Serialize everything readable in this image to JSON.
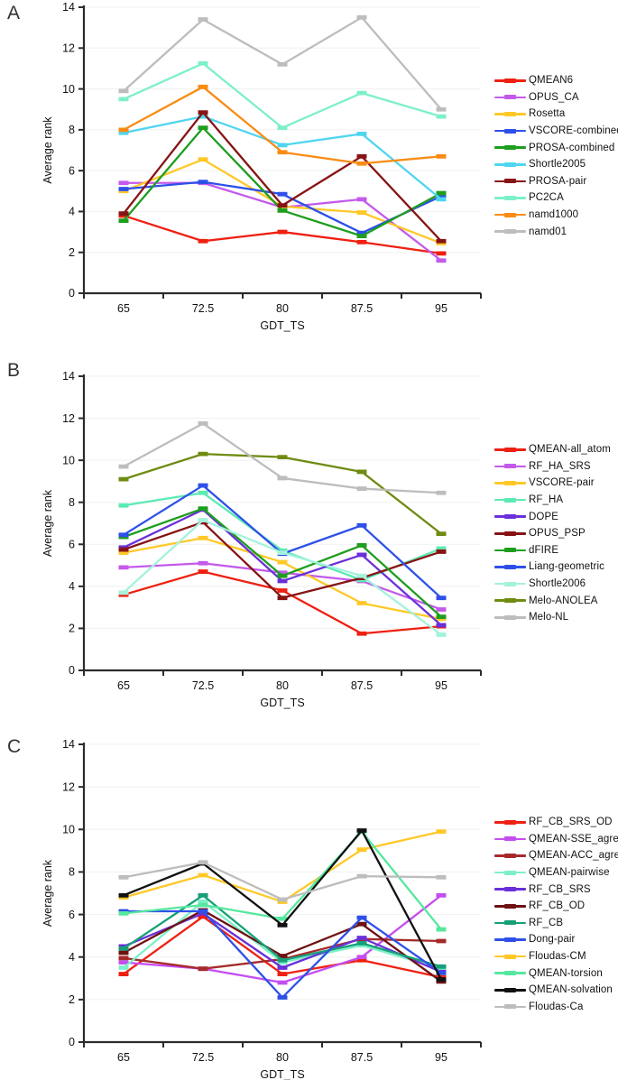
{
  "figure_title": "",
  "axis": {
    "xlabel": "GDT_TS",
    "ylabel": "Average rank"
  },
  "chart_data": [
    {
      "type": "line",
      "panel": "A",
      "xlabel": "GDT_TS",
      "ylabel": "Average rank",
      "categories": [
        "65",
        "72.5",
        "80",
        "87.5",
        "95"
      ],
      "ylim": [
        0,
        14
      ],
      "y_ticks": [
        0,
        2,
        4,
        6,
        8,
        10,
        12,
        14
      ],
      "grid": true,
      "legend_position": "right",
      "series": [
        {
          "name": "QMEAN6",
          "color": "#EE2011",
          "values": [
            3.8,
            2.55,
            3.0,
            2.5,
            1.95
          ]
        },
        {
          "name": "OPUS_CA",
          "color": "#C45AEC",
          "values": [
            5.4,
            5.4,
            4.2,
            4.6,
            1.6
          ]
        },
        {
          "name": "Rosetta",
          "color": "#FFC828",
          "values": [
            5.0,
            6.55,
            4.25,
            3.95,
            2.45
          ]
        },
        {
          "name": "VSCORE-combined",
          "color": "#2E50E8",
          "values": [
            5.1,
            5.45,
            4.85,
            2.95,
            4.75
          ]
        },
        {
          "name": "PROSA-combined",
          "color": "#1E9E1E",
          "values": [
            3.55,
            8.1,
            4.05,
            2.8,
            4.9
          ]
        },
        {
          "name": "Shortle2005",
          "color": "#4FD5F0",
          "values": [
            7.85,
            8.65,
            7.25,
            7.8,
            4.6
          ]
        },
        {
          "name": "PROSA-pair",
          "color": "#871414",
          "values": [
            3.9,
            8.85,
            4.3,
            6.7,
            2.55
          ]
        },
        {
          "name": "PC2CA",
          "color": "#7DF0C8",
          "values": [
            9.5,
            11.25,
            8.1,
            9.8,
            8.65
          ]
        },
        {
          "name": "namd1000",
          "color": "#F98C14",
          "values": [
            8.0,
            10.1,
            6.9,
            6.35,
            6.7
          ]
        },
        {
          "name": "namd01",
          "color": "#BDBDBD",
          "values": [
            9.9,
            13.4,
            11.2,
            13.5,
            9.0
          ]
        }
      ]
    },
    {
      "type": "line",
      "panel": "B",
      "xlabel": "GDT_TS",
      "ylabel": "Average rank",
      "categories": [
        "65",
        "72.5",
        "80",
        "87.5",
        "95"
      ],
      "ylim": [
        0,
        14
      ],
      "y_ticks": [
        0,
        2,
        4,
        6,
        8,
        10,
        12,
        14
      ],
      "grid": true,
      "legend_position": "right",
      "series": [
        {
          "name": "QMEAN-all_atom",
          "color": "#EE2011",
          "values": [
            3.6,
            4.7,
            3.8,
            1.75,
            2.1
          ]
        },
        {
          "name": "RF_HA_SRS",
          "color": "#C45AEC",
          "values": [
            4.9,
            5.1,
            4.65,
            4.25,
            2.9
          ]
        },
        {
          "name": "VSCORE-pair",
          "color": "#FFC828",
          "values": [
            5.6,
            6.3,
            5.15,
            3.2,
            2.45
          ]
        },
        {
          "name": "RF_HA",
          "color": "#5CEAB4",
          "values": [
            7.85,
            8.45,
            5.7,
            4.3,
            5.8
          ]
        },
        {
          "name": "DOPE",
          "color": "#6A30D9",
          "values": [
            5.85,
            7.65,
            4.25,
            5.5,
            2.15
          ]
        },
        {
          "name": "OPUS_PSP",
          "color": "#871414",
          "values": [
            5.75,
            7.05,
            3.45,
            4.4,
            5.65
          ]
        },
        {
          "name": "dFIRE",
          "color": "#1E9E1E",
          "values": [
            6.35,
            7.7,
            4.5,
            5.95,
            2.55
          ]
        },
        {
          "name": "Liang-geometric",
          "color": "#2E50E8",
          "values": [
            6.45,
            8.8,
            5.55,
            6.9,
            3.45
          ]
        },
        {
          "name": "Shortle2006",
          "color": "#A4F2DC",
          "values": [
            3.7,
            7.15,
            5.6,
            4.5,
            1.7
          ]
        },
        {
          "name": "Melo-ANOLEA",
          "color": "#6F8B12",
          "values": [
            9.1,
            10.3,
            10.15,
            9.45,
            6.5
          ]
        },
        {
          "name": "Melo-NL",
          "color": "#BDBDBD",
          "values": [
            9.7,
            11.75,
            9.15,
            8.65,
            8.45
          ]
        }
      ]
    },
    {
      "type": "line",
      "panel": "C",
      "xlabel": "GDT_TS",
      "ylabel": "Average rank",
      "categories": [
        "65",
        "72.5",
        "80",
        "87.5",
        "95"
      ],
      "ylim": [
        0,
        14
      ],
      "y_ticks": [
        0,
        2,
        4,
        6,
        8,
        10,
        12,
        14
      ],
      "grid": true,
      "legend_position": "right",
      "series": [
        {
          "name": "RF_CB_SRS_OD",
          "color": "#EE2011",
          "values": [
            3.2,
            5.9,
            3.2,
            3.85,
            3.05
          ]
        },
        {
          "name": "QMEAN-SSE_agree",
          "color": "#C44DF0",
          "values": [
            3.75,
            3.45,
            2.8,
            4.0,
            6.9
          ]
        },
        {
          "name": "QMEAN-ACC_agree",
          "color": "#A62A2A",
          "values": [
            3.95,
            3.45,
            3.9,
            4.85,
            4.75
          ]
        },
        {
          "name": "QMEAN-pairwise",
          "color": "#7DF0C8",
          "values": [
            3.5,
            6.6,
            3.75,
            4.55,
            3.45
          ]
        },
        {
          "name": "RF_CB_SRS",
          "color": "#6A30D9",
          "values": [
            4.5,
            6.05,
            3.5,
            4.9,
            3.3
          ]
        },
        {
          "name": "RF_CB_OD",
          "color": "#6E1111",
          "values": [
            4.2,
            6.2,
            4.05,
            5.55,
            2.85
          ]
        },
        {
          "name": "RF_CB",
          "color": "#16A078",
          "values": [
            4.4,
            6.9,
            3.85,
            4.65,
            3.55
          ]
        },
        {
          "name": "Dong-pair",
          "color": "#2E50E8",
          "values": [
            6.15,
            6.15,
            2.1,
            5.85,
            3.25
          ]
        },
        {
          "name": "Floudas-CM",
          "color": "#FFC828",
          "values": [
            6.8,
            7.85,
            6.6,
            9.05,
            9.9
          ]
        },
        {
          "name": "QMEAN-torsion",
          "color": "#55E89E",
          "values": [
            6.05,
            6.45,
            5.8,
            9.9,
            5.3
          ]
        },
        {
          "name": "QMEAN-solvation",
          "color": "#111111",
          "values": [
            6.9,
            8.4,
            5.5,
            9.95,
            2.95
          ]
        },
        {
          "name": "Floudas-Ca",
          "color": "#BDBDBD",
          "values": [
            7.75,
            8.45,
            6.7,
            7.8,
            7.75
          ]
        }
      ]
    }
  ]
}
